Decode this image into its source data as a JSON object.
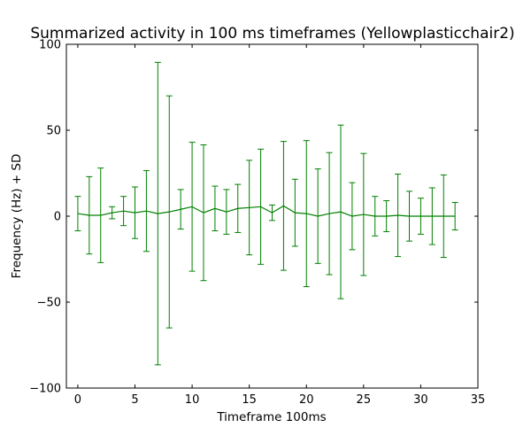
{
  "chart_data": {
    "type": "line",
    "title": "Summarized activity in 100 ms timeframes (Yellowplasticchair2)",
    "xlabel": "Timeframe 100ms",
    "ylabel": "Frequency (Hz) + SD",
    "xlim": [
      -1,
      35
    ],
    "ylim": [
      -100,
      100
    ],
    "xticks": [
      0,
      5,
      10,
      15,
      20,
      25,
      30,
      35
    ],
    "yticks": [
      -100,
      -50,
      0,
      50,
      100
    ],
    "xtick_labels": [
      "0",
      "5",
      "10",
      "15",
      "20",
      "25",
      "30",
      "35"
    ],
    "ytick_labels": [
      "−100",
      "−50",
      "0",
      "50",
      "100"
    ],
    "grid": false,
    "color": "#008000",
    "series": [
      {
        "x": [
          0,
          1,
          2,
          3,
          4,
          5,
          6,
          7,
          8,
          9,
          10,
          11,
          12,
          13,
          14,
          15,
          16,
          17,
          18,
          19,
          20,
          21,
          22,
          23,
          24,
          25,
          26,
          27,
          28,
          29,
          30,
          31,
          32,
          33
        ],
        "y": [
          1.5,
          0.5,
          0.5,
          2,
          3,
          2,
          3,
          1.5,
          2.5,
          4,
          5.5,
          2,
          4.5,
          2.5,
          4.5,
          5,
          5.5,
          2,
          6,
          2,
          1.5,
          0,
          1.5,
          2.5,
          0,
          1,
          0,
          0,
          0.5,
          0,
          0,
          0,
          0,
          0
        ],
        "sd": [
          10,
          22.5,
          27.5,
          3.5,
          8.5,
          15,
          23.5,
          88,
          67.5,
          11.5,
          37.5,
          39.5,
          13,
          13,
          14,
          27.5,
          33.5,
          4.5,
          37.5,
          19.5,
          42.5,
          27.5,
          35.5,
          50.5,
          19.5,
          35.5,
          11.5,
          9,
          24,
          14.5,
          10.5,
          16.5,
          24,
          8
        ]
      }
    ]
  }
}
